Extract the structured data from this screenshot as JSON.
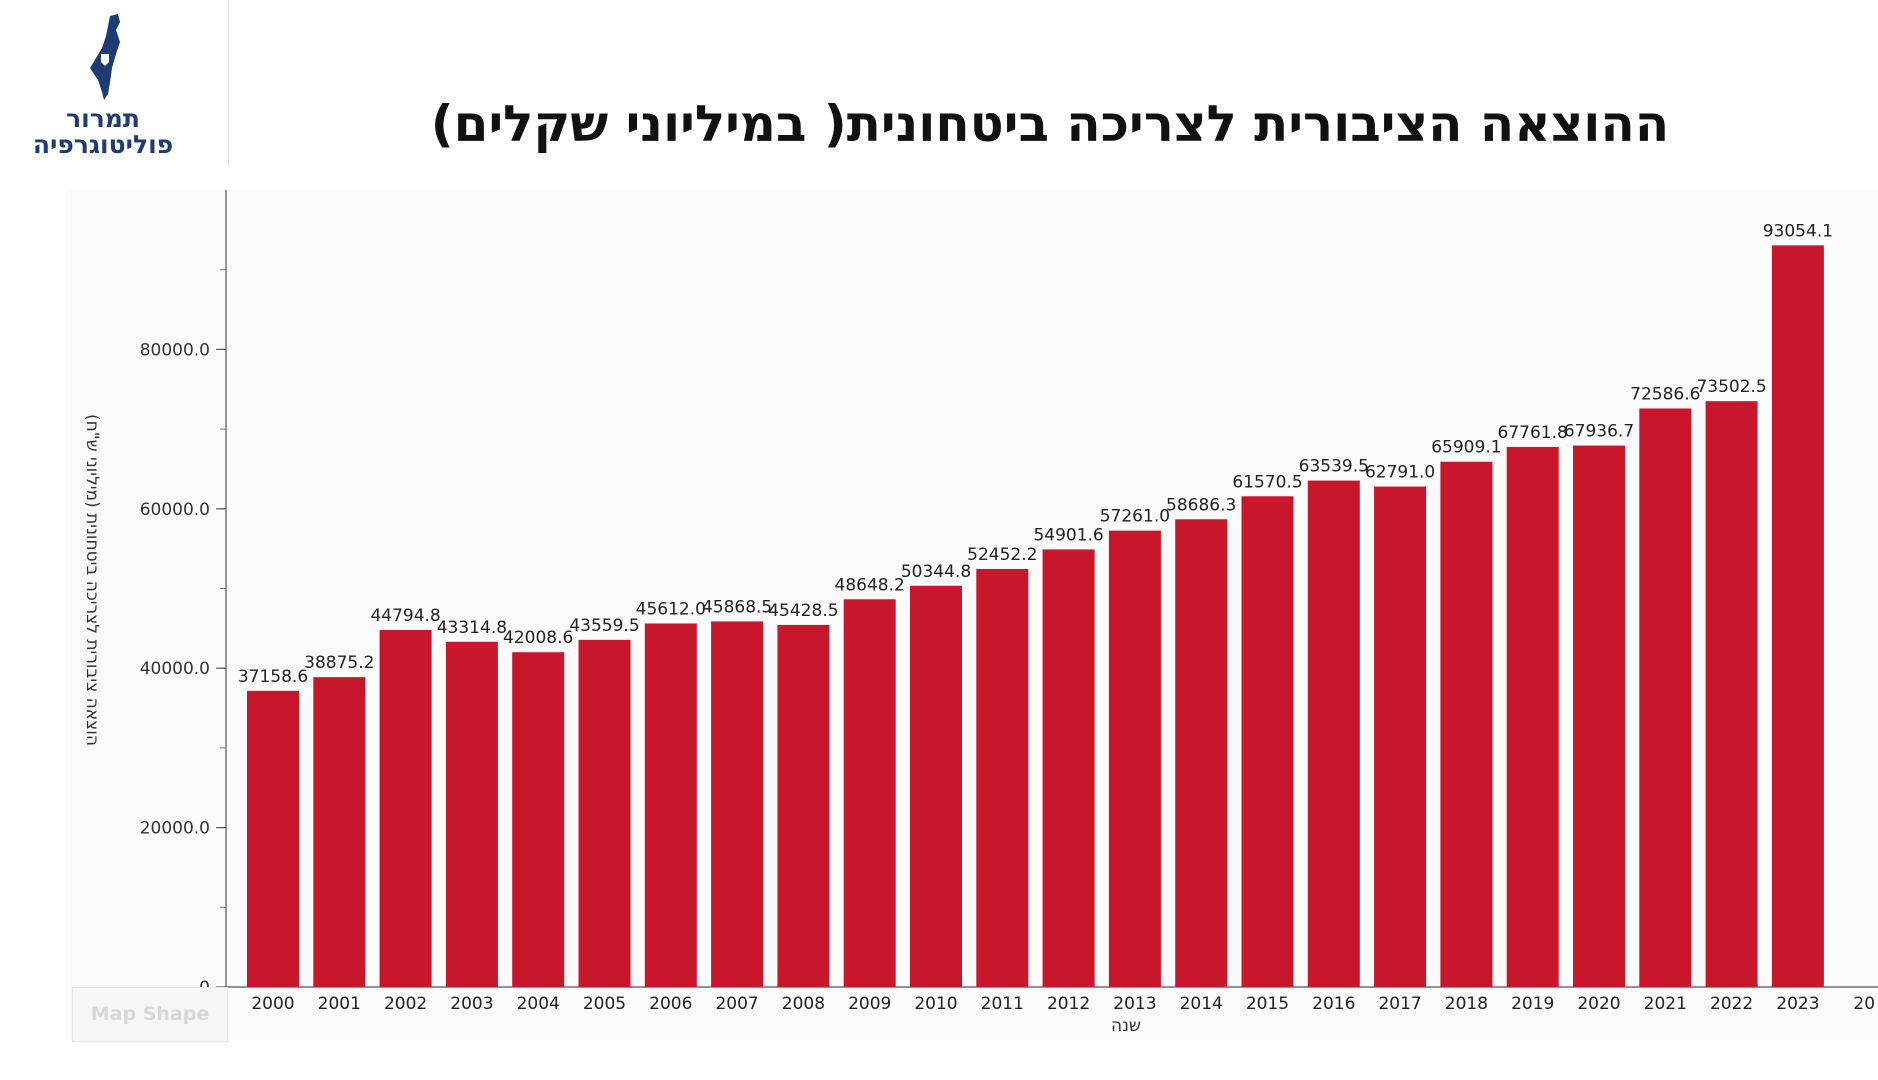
{
  "logo": {
    "line1": "תמרור",
    "line2": "פוליטוגרפיה",
    "icon": "israel-map-icon",
    "color": "#1f3b73"
  },
  "title": "ההוצאה הציבורית לצריכה ביטחונית( במיליוני שקלים)",
  "map_shape_label": "Map Shape",
  "chart_data": {
    "type": "bar",
    "title": "ההוצאה הציבורית לצריכה ביטחונית( במיליוני שקלים)",
    "xlabel": "שנה",
    "ylabel": "(הוצאה ציבורית לצריכה ביטחונית (מיליוני ש\"ח",
    "categories": [
      "2000",
      "2001",
      "2002",
      "2003",
      "2004",
      "2005",
      "2006",
      "2007",
      "2008",
      "2009",
      "2010",
      "2011",
      "2012",
      "2013",
      "2014",
      "2015",
      "2016",
      "2017",
      "2018",
      "2019",
      "2020",
      "2021",
      "2022",
      "2023"
    ],
    "values": [
      37158.6,
      38875.2,
      44794.8,
      43314.8,
      42008.6,
      43559.5,
      45612.0,
      45868.5,
      45428.5,
      48648.2,
      50344.8,
      52452.2,
      54901.6,
      57261.0,
      58686.3,
      61570.5,
      63539.5,
      62791.0,
      65909.1,
      67761.8,
      67936.7,
      72586.6,
      73502.5,
      93054.1
    ],
    "value_labels": [
      "37158.6",
      "38875.2",
      "44794.8",
      "43314.8",
      "42008.6",
      "43559.5",
      "45612.0",
      "45868.5",
      "45428.5",
      "48648.2",
      "50344.8",
      "52452.2",
      "54901.6",
      "57261.0",
      "58686.3",
      "61570.5",
      "63539.5",
      "62791.0",
      "65909.1",
      "67761.8",
      "67936.7",
      "72586.6",
      "73502.5",
      "93054.1"
    ],
    "y_ticks": [
      0,
      20000,
      40000,
      60000,
      80000
    ],
    "y_tick_labels": [
      "0",
      "20000.0",
      "40000.0",
      "60000.0",
      "80000.0"
    ],
    "ylim": [
      0,
      100000
    ],
    "bar_color": "#c8162b",
    "grid": false,
    "clipped_next_category": "20"
  }
}
